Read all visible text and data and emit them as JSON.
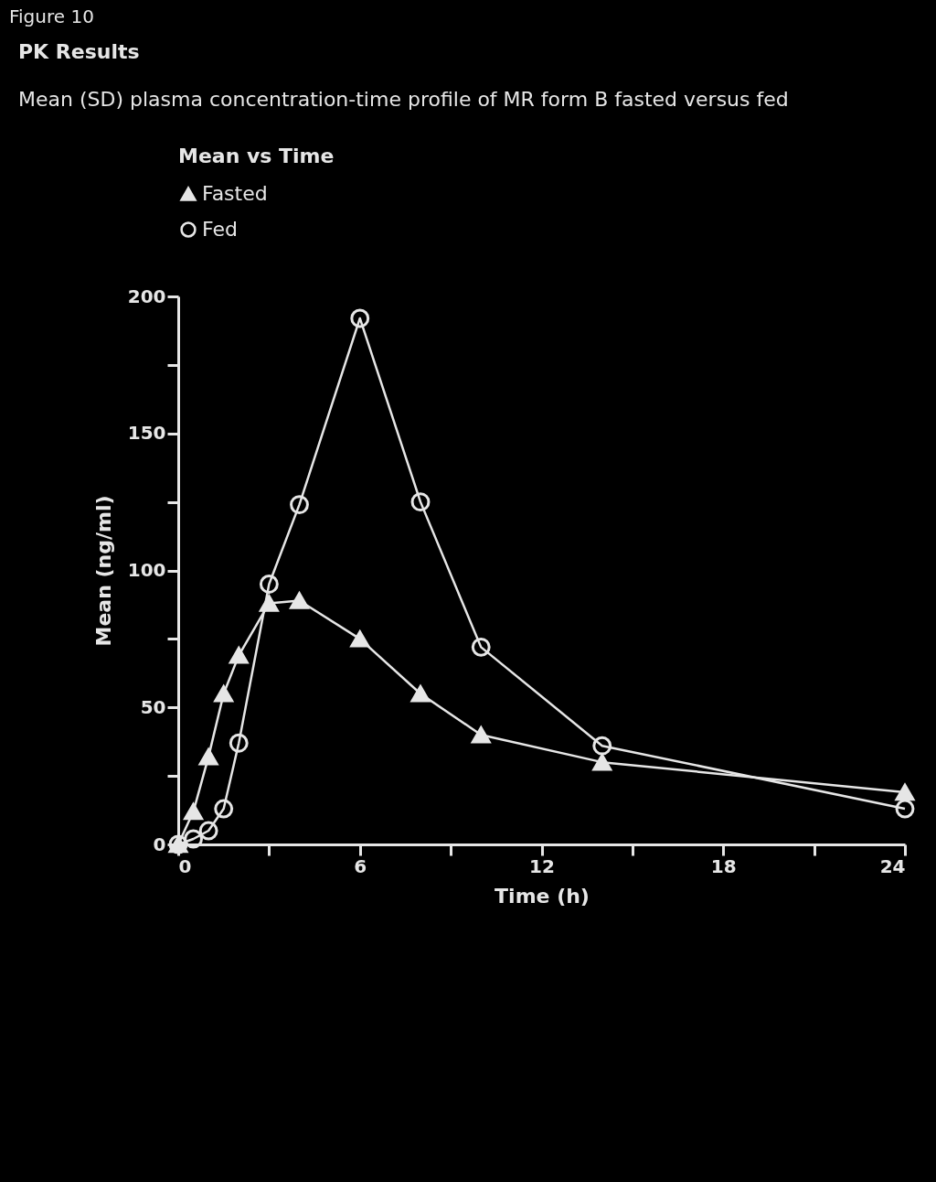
{
  "chart_data": {
    "type": "line",
    "title": "PK Results",
    "subtitle": "Mean (SD) plasma concentration-time profile of MR form B fasted versus fed",
    "annotations": [
      "Figure 10"
    ],
    "xlabel": "Time (h)",
    "ylabel": "Mean (ng/ml)",
    "legend_title": "Mean vs Time",
    "legend": "top",
    "line_style": "solid",
    "x": [
      0,
      0.5,
      1,
      1.5,
      2,
      3,
      4,
      6,
      8,
      10,
      14,
      24
    ],
    "series": [
      {
        "name": "Fasted",
        "color": "#e6e6e6",
        "marker": "triangle",
        "values": [
          0,
          12,
          32,
          55,
          69,
          88,
          89,
          75,
          55,
          40,
          30,
          19
        ]
      },
      {
        "name": "Fed",
        "color": "#e6e6e6",
        "marker": "circle",
        "values": [
          0,
          2,
          5,
          13,
          37,
          95,
          124,
          192,
          125,
          72,
          36,
          13
        ]
      }
    ],
    "xlim": [
      0,
      24
    ],
    "xticks": [
      0,
      {
        "value": 3,
        "label": null
      },
      6,
      {
        "value": 9,
        "label": null
      },
      12,
      {
        "value": 15,
        "label": null
      },
      18,
      {
        "value": 21,
        "label": null
      },
      24
    ],
    "ylim": [
      0,
      200
    ],
    "yticks": [
      0,
      {
        "value": 25,
        "label": null
      },
      50,
      {
        "value": 75,
        "label": null
      },
      100,
      {
        "value": 125,
        "label": null
      },
      150,
      {
        "value": 175,
        "label": null
      },
      200
    ],
    "grid": false
  }
}
